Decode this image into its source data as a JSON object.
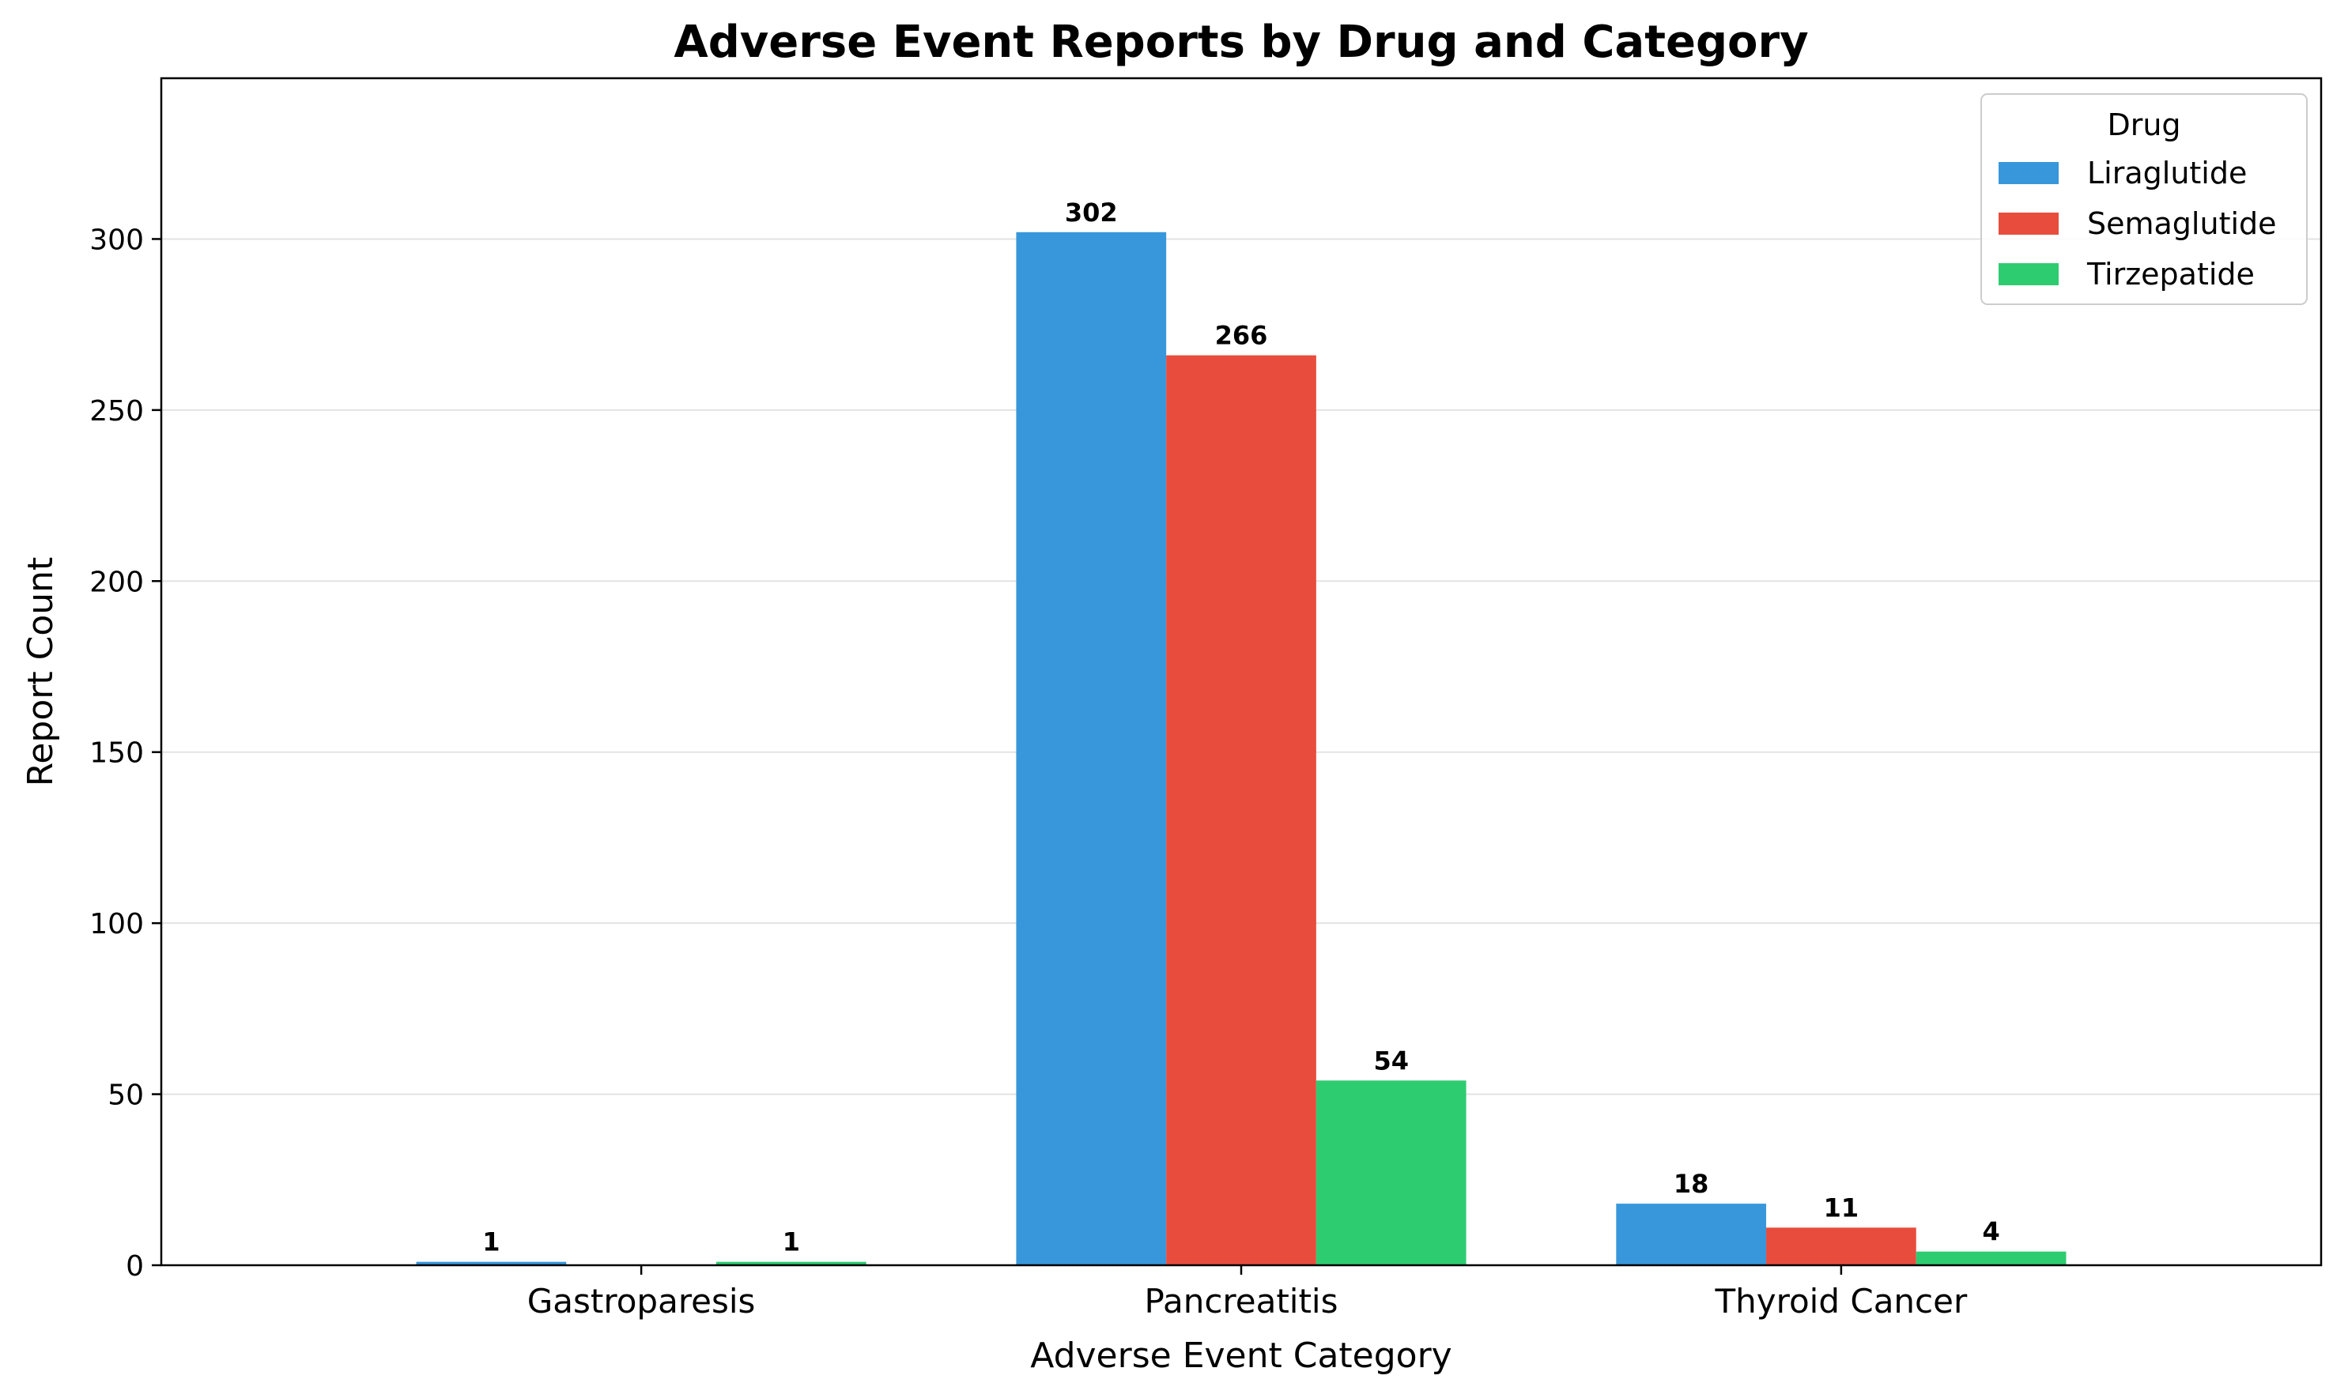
{
  "chart_data": {
    "type": "bar",
    "title": "Adverse Event Reports by Drug and Category",
    "xlabel": "Adverse Event Category",
    "ylabel": "Report Count",
    "categories": [
      "Gastroparesis",
      "Pancreatitis",
      "Thyroid Cancer"
    ],
    "series": [
      {
        "name": "Liraglutide",
        "values": [
          1,
          302,
          18
        ],
        "color": "#3897db"
      },
      {
        "name": "Semaglutide",
        "values": [
          0,
          266,
          11
        ],
        "color": "#e84c3d"
      },
      {
        "name": "Tirzepatide",
        "values": [
          1,
          54,
          4
        ],
        "color": "#2ecc71"
      }
    ],
    "ylim": [
      0,
      347
    ],
    "yticks": [
      0,
      50,
      100,
      150,
      200,
      250,
      300
    ],
    "grid": "horizontal",
    "legend": {
      "title": "Drug",
      "position": "top-right"
    }
  }
}
